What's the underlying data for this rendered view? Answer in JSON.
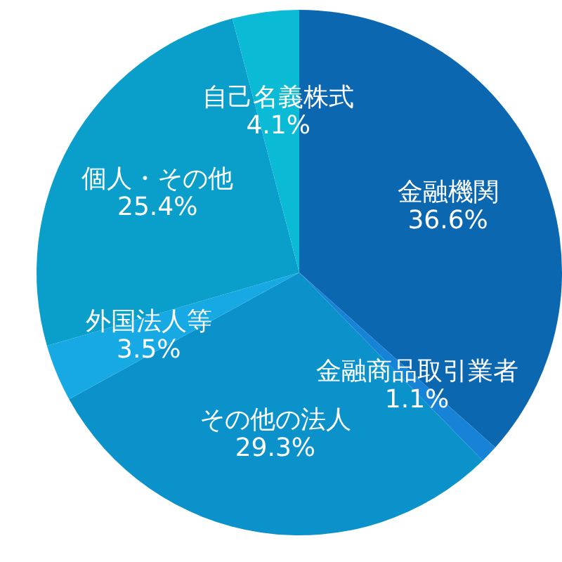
{
  "chart_data": {
    "type": "pie",
    "categories": [
      "金融機関",
      "金融商品取引業者",
      "その他の法人",
      "外国法人等",
      "個人・その他",
      "自己名義株式"
    ],
    "values": [
      36.6,
      1.1,
      29.3,
      3.5,
      25.4,
      4.1
    ],
    "value_labels": [
      "36.6%",
      "1.1%",
      "29.3%",
      "3.5%",
      "25.4%",
      "4.1%"
    ],
    "colors": [
      "#0c67b1",
      "#1683d6",
      "#0b92cb",
      "#17a9e4",
      "#0a9fcb",
      "#0bbad4"
    ]
  }
}
